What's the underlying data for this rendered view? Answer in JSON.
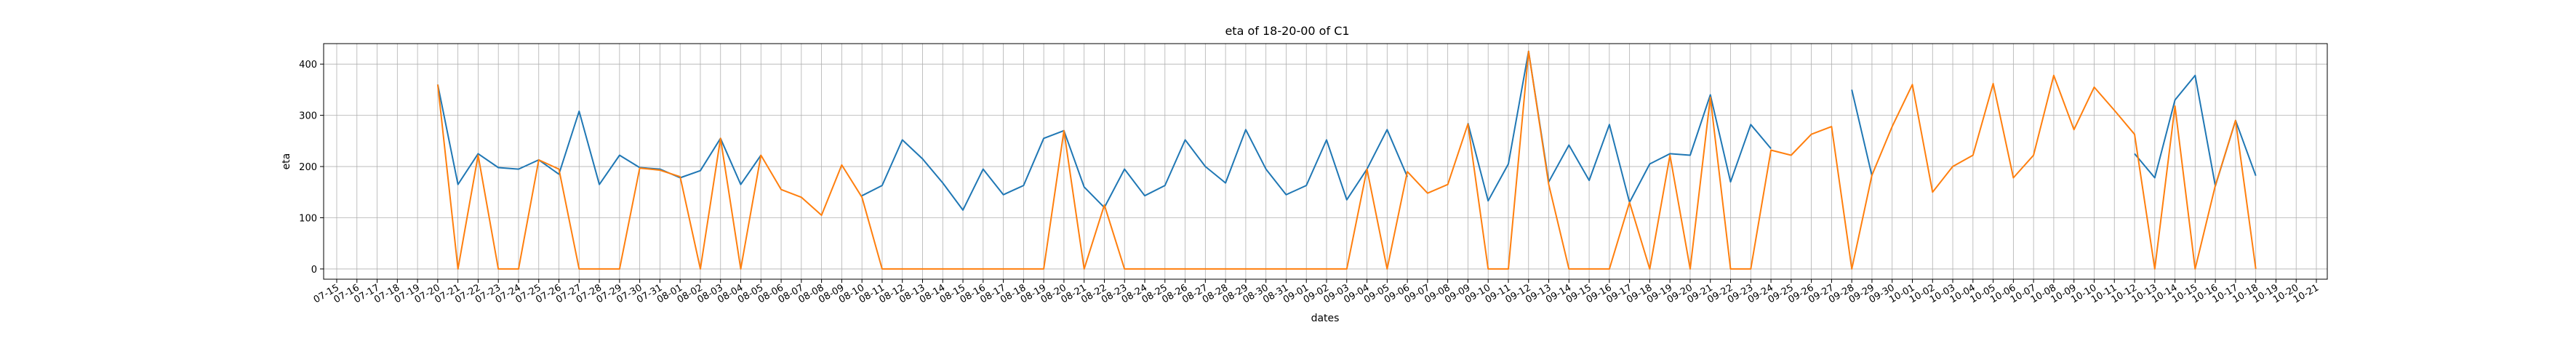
{
  "chart_data": {
    "type": "line",
    "title": "eta of 18-20-00 of C1",
    "xlabel": "dates",
    "ylabel": "eta",
    "ylim": [
      -20,
      440
    ],
    "grid": true,
    "y_ticks": [
      0,
      100,
      200,
      300,
      400
    ],
    "categories": [
      "07-15",
      "07-16",
      "07-17",
      "07-18",
      "07-19",
      "07-20",
      "07-21",
      "07-22",
      "07-23",
      "07-24",
      "07-25",
      "07-26",
      "07-27",
      "07-28",
      "07-29",
      "07-30",
      "07-31",
      "08-01",
      "08-02",
      "08-03",
      "08-04",
      "08-05",
      "08-06",
      "08-07",
      "08-08",
      "08-09",
      "08-10",
      "08-11",
      "08-12",
      "08-13",
      "08-14",
      "08-15",
      "08-16",
      "08-17",
      "08-18",
      "08-19",
      "08-20",
      "08-21",
      "08-22",
      "08-23",
      "08-24",
      "08-25",
      "08-26",
      "08-27",
      "08-28",
      "08-29",
      "08-30",
      "08-31",
      "09-01",
      "09-02",
      "09-03",
      "09-04",
      "09-05",
      "09-06",
      "09-07",
      "09-08",
      "09-09",
      "09-10",
      "09-11",
      "09-12",
      "09-13",
      "09-14",
      "09-15",
      "09-16",
      "09-17",
      "09-18",
      "09-19",
      "09-20",
      "09-21",
      "09-22",
      "09-23",
      "09-24",
      "09-25",
      "09-26",
      "09-27",
      "09-28",
      "09-29",
      "09-30",
      "10-01",
      "10-02",
      "10-03",
      "10-04",
      "10-05",
      "10-06",
      "10-07",
      "10-08",
      "10-09",
      "10-10",
      "10-11",
      "10-12",
      "10-13",
      "10-14",
      "10-15",
      "10-16",
      "10-17",
      "10-18",
      "10-19",
      "10-20",
      "10-21"
    ],
    "series": [
      {
        "color": "#1f77b4",
        "values": [
          null,
          null,
          null,
          null,
          null,
          360,
          165,
          225,
          198,
          195,
          213,
          185,
          308,
          165,
          222,
          198,
          195,
          178,
          192,
          255,
          165,
          222,
          null,
          null,
          null,
          null,
          143,
          163,
          252,
          215,
          168,
          115,
          195,
          145,
          163,
          255,
          270,
          160,
          120,
          195,
          143,
          163,
          252,
          200,
          168,
          272,
          195,
          145,
          163,
          252,
          135,
          195,
          272,
          180,
          null,
          null,
          285,
          133,
          205,
          425,
          170,
          242,
          173,
          282,
          130,
          205,
          225,
          222,
          340,
          170,
          282,
          235,
          null,
          null,
          null,
          350,
          182,
          null,
          null,
          null,
          null,
          null,
          null,
          null,
          null,
          null,
          null,
          null,
          null,
          225,
          178,
          330,
          378,
          162,
          290,
          182,
          null,
          null,
          null
        ]
      },
      {
        "color": "#ff7f0e",
        "values": [
          null,
          null,
          null,
          null,
          null,
          360,
          0,
          222,
          0,
          0,
          213,
          195,
          0,
          0,
          0,
          197,
          193,
          180,
          0,
          255,
          0,
          222,
          155,
          140,
          105,
          203,
          140,
          0,
          0,
          0,
          0,
          0,
          0,
          0,
          0,
          0,
          270,
          0,
          125,
          0,
          0,
          0,
          0,
          0,
          0,
          0,
          0,
          0,
          0,
          0,
          0,
          195,
          0,
          190,
          148,
          165,
          283,
          0,
          0,
          425,
          165,
          0,
          0,
          0,
          130,
          0,
          222,
          0,
          335,
          0,
          0,
          232,
          222,
          263,
          278,
          0,
          183,
          278,
          360,
          150,
          200,
          222,
          362,
          178,
          222,
          378,
          272,
          355,
          310,
          263,
          0,
          318,
          0,
          163,
          290,
          0,
          null,
          null,
          null
        ]
      }
    ]
  }
}
